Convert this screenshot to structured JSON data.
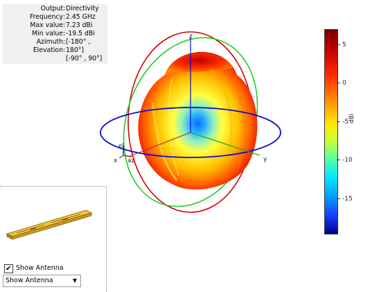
{
  "info": {
    "rows": [
      {
        "key": "Output",
        "value": "Directivity"
      },
      {
        "key": "Frequency",
        "value": "2.45 GHz"
      },
      {
        "key": "Max value",
        "value": "7.23 dBi"
      },
      {
        "key": "Min value",
        "value": "-19.5 dBi"
      },
      {
        "key": "Azimuth",
        "value": "[-180° ,"
      },
      {
        "key": "Elevation",
        "value": "180°]"
      }
    ],
    "extra": "[-90° , 90°]"
  },
  "axes": {
    "x": "x",
    "y": "y",
    "z": "z",
    "el": "el",
    "az": "az"
  },
  "colorbar": {
    "unit": "dBi",
    "ticks": [
      {
        "label": "5",
        "value": 5
      },
      {
        "label": "0",
        "value": 0
      },
      {
        "label": "-5",
        "value": -5
      },
      {
        "label": "-10",
        "value": -10
      },
      {
        "label": "-15",
        "value": -15
      }
    ],
    "min": -19.5,
    "max": 7.23
  },
  "antenna": {
    "checkbox_label": "Show Antenna",
    "checked": true,
    "check_glyph": "✔",
    "dropdown_value": "Show Antenna",
    "dropdown_arrow": "▼"
  }
}
